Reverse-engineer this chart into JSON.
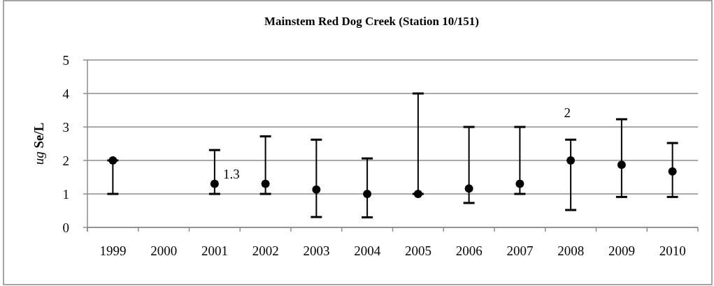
{
  "chart_data": {
    "type": "scatter",
    "title": "Mainstem Red Dog Creek (Station 10/151)",
    "ylabel": "$^{}$ug Se/L",
    "categories": [
      "1999",
      "2000",
      "2001",
      "2002",
      "2003",
      "2004",
      "2005",
      "2006",
      "2007",
      "2008",
      "2009",
      "2010"
    ],
    "values": [
      2.0,
      null,
      1.3,
      1.3,
      1.13,
      1.0,
      1.0,
      1.16,
      1.3,
      2.0,
      1.87,
      1.67
    ],
    "errors": [
      [
        1.0,
        2.0
      ],
      null,
      [
        1.0,
        2.31
      ],
      [
        1.0,
        2.72
      ],
      [
        0.31,
        2.62
      ],
      [
        0.3,
        2.06
      ],
      [
        1.0,
        4.0
      ],
      [
        0.73,
        3.0
      ],
      [
        1.0,
        3.0
      ],
      [
        0.52,
        2.62
      ],
      [
        0.91,
        3.23
      ],
      [
        0.91,
        2.52
      ]
    ],
    "value_labels": [
      null,
      null,
      "1.3",
      null,
      null,
      null,
      null,
      null,
      null,
      "2",
      null,
      null
    ],
    "color": "#000000",
    "marker": "circle",
    "ylim": [
      0,
      5
    ],
    "yticks": [
      0,
      1,
      2,
      3,
      4,
      5
    ],
    "grid": "y"
  }
}
